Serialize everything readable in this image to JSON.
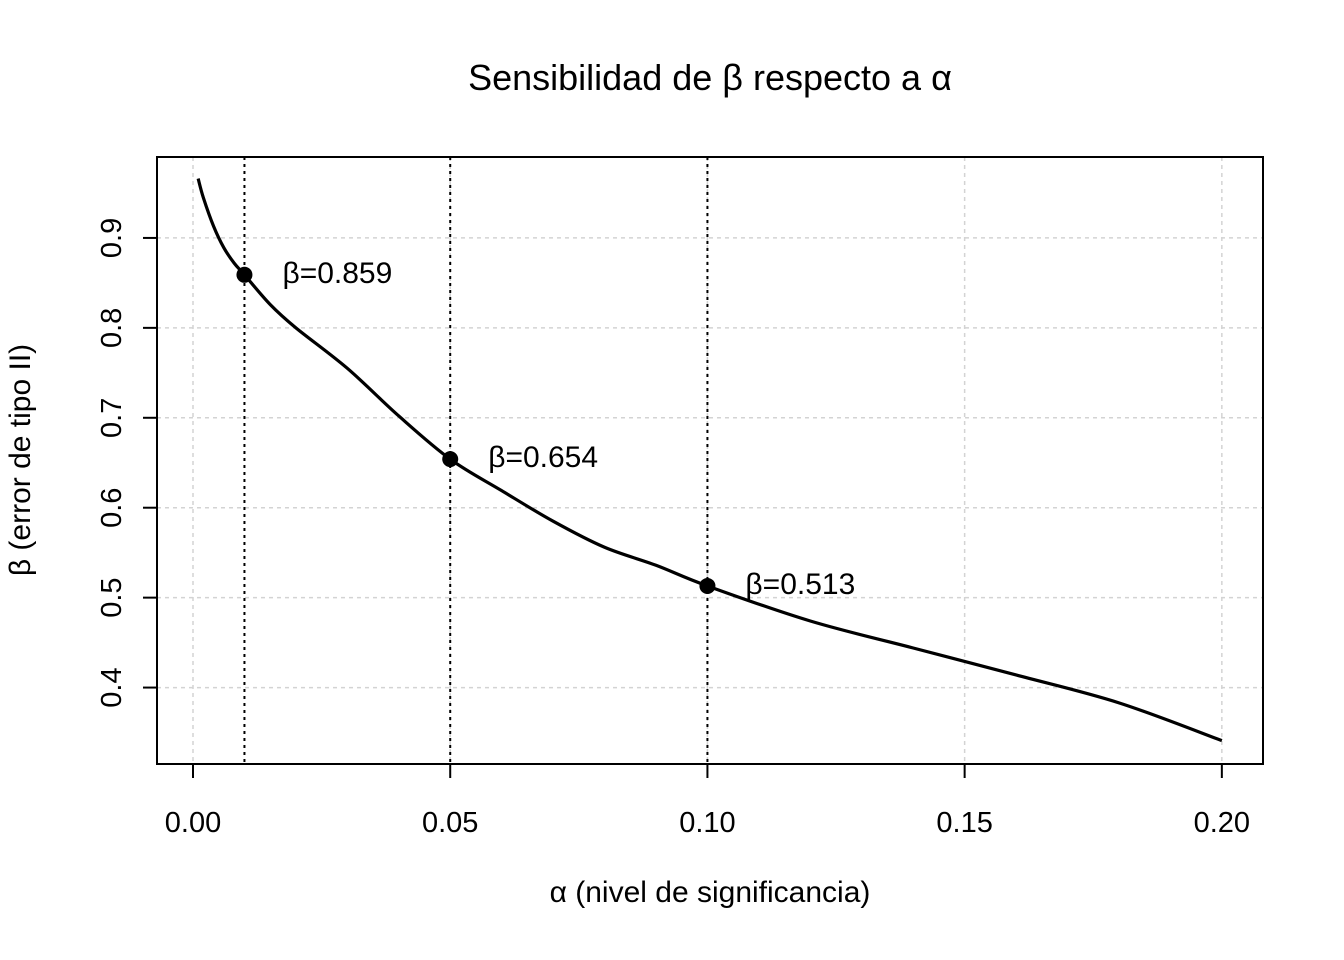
{
  "chart_data": {
    "type": "line",
    "title": "Sensibilidad de β respecto a α",
    "xlabel": "α (nivel de significancia)",
    "ylabel": "β (error de tipo II)",
    "xlim": [
      -0.007,
      0.208
    ],
    "ylim": [
      0.315,
      0.99
    ],
    "x_ticks": [
      0.0,
      0.05,
      0.1,
      0.15,
      0.2
    ],
    "x_tick_labels": [
      "0.00",
      "0.05",
      "0.10",
      "0.15",
      "0.20"
    ],
    "y_ticks": [
      0.4,
      0.5,
      0.6,
      0.7,
      0.8,
      0.9
    ],
    "y_tick_labels": [
      "0.4",
      "0.5",
      "0.6",
      "0.7",
      "0.8",
      "0.9"
    ],
    "grid": true,
    "series": [
      {
        "x": [
          0.001,
          0.002,
          0.004,
          0.006,
          0.008,
          0.01,
          0.015,
          0.02,
          0.03,
          0.04,
          0.05,
          0.06,
          0.07,
          0.08,
          0.09,
          0.1,
          0.12,
          0.14,
          0.16,
          0.18,
          0.2
        ],
        "values": [
          0.966,
          0.945,
          0.913,
          0.889,
          0.872,
          0.859,
          0.826,
          0.8,
          0.755,
          0.702,
          0.654,
          0.619,
          0.585,
          0.556,
          0.536,
          0.513,
          0.474,
          0.444,
          0.414,
          0.383,
          0.341
        ]
      }
    ],
    "highlights": [
      {
        "x": 0.01,
        "y": 0.859,
        "label": "β=0.859"
      },
      {
        "x": 0.05,
        "y": 0.654,
        "label": "β=0.654"
      },
      {
        "x": 0.1,
        "y": 0.513,
        "label": "β=0.513"
      }
    ]
  }
}
